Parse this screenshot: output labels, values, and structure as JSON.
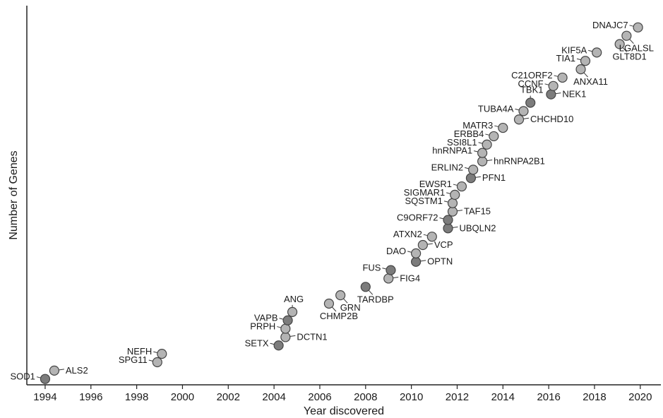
{
  "chart_data": {
    "type": "scatter",
    "xlabel": "Year discovered",
    "ylabel": "Number of Genes",
    "xlim": [
      1993.2,
      2020.9
    ],
    "ylim": [
      0.3,
      45.6
    ],
    "xticks": [
      1994,
      1996,
      1998,
      2000,
      2002,
      2004,
      2006,
      2008,
      2010,
      2012,
      2014,
      2016,
      2018,
      2020
    ],
    "grid": false,
    "point_colors": {
      "light": "#b4b4b4",
      "dark": "#7c7c7c"
    },
    "points": [
      {
        "gene": "SOD1",
        "x": 1994.0,
        "y": 1,
        "shade": "dark",
        "label_side": "left"
      },
      {
        "gene": "ALS2",
        "x": 1994.4,
        "y": 2,
        "shade": "light",
        "label_side": "right"
      },
      {
        "gene": "SPG11",
        "x": 1998.9,
        "y": 3,
        "shade": "light",
        "label_side": "left"
      },
      {
        "gene": "NEFH",
        "x": 1999.1,
        "y": 4,
        "shade": "light",
        "label_side": "left"
      },
      {
        "gene": "SETX",
        "x": 2004.2,
        "y": 5,
        "shade": "dark",
        "label_side": "left"
      },
      {
        "gene": "DCTN1",
        "x": 2004.5,
        "y": 6,
        "shade": "light",
        "label_side": "right"
      },
      {
        "gene": "PRPH",
        "x": 2004.5,
        "y": 7,
        "shade": "light",
        "label_side": "left"
      },
      {
        "gene": "VAPB",
        "x": 2004.6,
        "y": 8,
        "shade": "dark",
        "label_side": "left"
      },
      {
        "gene": "ANG",
        "x": 2004.8,
        "y": 9,
        "shade": "light",
        "label_side": "above"
      },
      {
        "gene": "CHMP2B",
        "x": 2006.4,
        "y": 10,
        "shade": "light",
        "label_side": "below"
      },
      {
        "gene": "GRN",
        "x": 2006.9,
        "y": 11,
        "shade": "light",
        "label_side": "below"
      },
      {
        "gene": "TARDBP",
        "x": 2008.0,
        "y": 12,
        "shade": "dark",
        "label_side": "below"
      },
      {
        "gene": "FIG4",
        "x": 2009.0,
        "y": 13,
        "shade": "light",
        "label_side": "right"
      },
      {
        "gene": "FUS",
        "x": 2009.1,
        "y": 14,
        "shade": "dark",
        "label_side": "left"
      },
      {
        "gene": "OPTN",
        "x": 2010.2,
        "y": 15,
        "shade": "dark",
        "label_side": "right"
      },
      {
        "gene": "DAO",
        "x": 2010.2,
        "y": 16,
        "shade": "light",
        "label_side": "left"
      },
      {
        "gene": "VCP",
        "x": 2010.5,
        "y": 17,
        "shade": "light",
        "label_side": "right"
      },
      {
        "gene": "ATXN2",
        "x": 2010.9,
        "y": 18,
        "shade": "light",
        "label_side": "left"
      },
      {
        "gene": "UBQLN2",
        "x": 2011.6,
        "y": 19,
        "shade": "dark",
        "label_side": "right"
      },
      {
        "gene": "C9ORF72",
        "x": 2011.6,
        "y": 20,
        "shade": "dark",
        "label_side": "left"
      },
      {
        "gene": "TAF15",
        "x": 2011.8,
        "y": 21,
        "shade": "light",
        "label_side": "right"
      },
      {
        "gene": "SQSTM1",
        "x": 2011.8,
        "y": 22,
        "shade": "light",
        "label_side": "left"
      },
      {
        "gene": "SIGMAR1",
        "x": 2011.9,
        "y": 23,
        "shade": "light",
        "label_side": "left"
      },
      {
        "gene": "EWSR1",
        "x": 2012.2,
        "y": 24,
        "shade": "light",
        "label_side": "left"
      },
      {
        "gene": "PFN1",
        "x": 2012.6,
        "y": 25,
        "shade": "dark",
        "label_side": "right"
      },
      {
        "gene": "ERLIN2",
        "x": 2012.7,
        "y": 26,
        "shade": "light",
        "label_side": "left"
      },
      {
        "gene": "hnRNPA2B1",
        "x": 2013.1,
        "y": 27,
        "shade": "light",
        "label_side": "right"
      },
      {
        "gene": "hnRNPA1",
        "x": 2013.1,
        "y": 28,
        "shade": "light",
        "label_side": "left"
      },
      {
        "gene": "SSI8L1",
        "x": 2013.3,
        "y": 29,
        "shade": "light",
        "label_side": "left"
      },
      {
        "gene": "ERBB4",
        "x": 2013.6,
        "y": 30,
        "shade": "light",
        "label_side": "left"
      },
      {
        "gene": "MATR3",
        "x": 2014.0,
        "y": 31,
        "shade": "light",
        "label_side": "left"
      },
      {
        "gene": "CHCHD10",
        "x": 2014.7,
        "y": 32,
        "shade": "light",
        "label_side": "right"
      },
      {
        "gene": "TUBA4A",
        "x": 2014.9,
        "y": 33,
        "shade": "light",
        "label_side": "left"
      },
      {
        "gene": "TBK1",
        "x": 2015.2,
        "y": 34,
        "shade": "dark",
        "label_side": "above"
      },
      {
        "gene": "NEK1",
        "x": 2016.1,
        "y": 35,
        "shade": "dark",
        "label_side": "right"
      },
      {
        "gene": "CCNF",
        "x": 2016.2,
        "y": 36,
        "shade": "light",
        "label_side": "left"
      },
      {
        "gene": "C21ORF2",
        "x": 2016.6,
        "y": 37,
        "shade": "light",
        "label_side": "left"
      },
      {
        "gene": "ANXA11",
        "x": 2017.4,
        "y": 38,
        "shade": "light",
        "label_side": "below"
      },
      {
        "gene": "TIA1",
        "x": 2017.6,
        "y": 39,
        "shade": "light",
        "label_side": "left"
      },
      {
        "gene": "KIF5A",
        "x": 2018.1,
        "y": 40,
        "shade": "light",
        "label_side": "left"
      },
      {
        "gene": "GLT8D1",
        "x": 2019.1,
        "y": 41,
        "shade": "light",
        "label_side": "below"
      },
      {
        "gene": "LGALSL",
        "x": 2019.4,
        "y": 42,
        "shade": "light",
        "label_side": "below"
      },
      {
        "gene": "DNAJC7",
        "x": 2019.9,
        "y": 43,
        "shade": "light",
        "label_side": "left"
      }
    ]
  }
}
